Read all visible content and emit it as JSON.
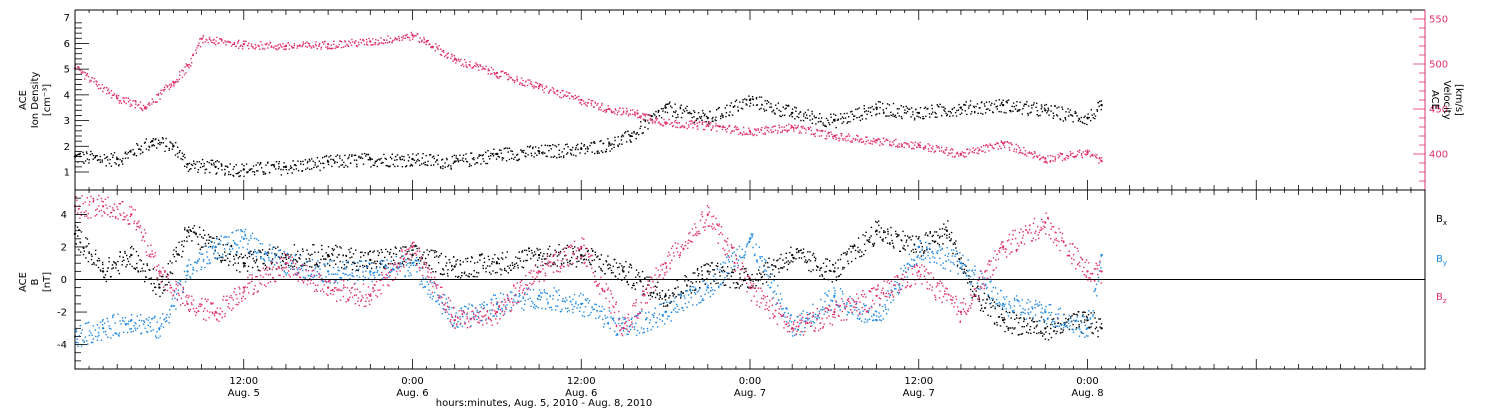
{
  "chart_data": [
    {
      "type": "scatter",
      "panel": "top",
      "left_axis": {
        "label_lines": [
          "ACE",
          "Ion Density",
          "[cm⁻³]"
        ],
        "ylim": [
          0.3,
          7.3
        ],
        "ticks": [
          1,
          2,
          3,
          4,
          5,
          6,
          7
        ],
        "color": "#000000"
      },
      "right_axis": {
        "label_lines": [
          "ACE",
          "Velocity",
          "[km/s]"
        ],
        "ylim": [
          360,
          560
        ],
        "ticks": [
          400,
          450,
          500,
          550
        ],
        "color": "#e0306a"
      },
      "series": [
        {
          "axis": "left",
          "color": "#000000",
          "x": [
            "Aug 5 00:00",
            "Aug 5 03:00",
            "Aug 5 05:30",
            "Aug 5 07:00",
            "Aug 5 08:00",
            "Aug 5 10:00",
            "Aug 5 12:00",
            "Aug 5 15:00",
            "Aug 5 18:00",
            "Aug 5 21:00",
            "Aug 6 00:00",
            "Aug 6 03:00",
            "Aug 6 06:00",
            "Aug 6 09:00",
            "Aug 6 12:00",
            "Aug 6 14:00",
            "Aug 6 15:30",
            "Aug 6 18:00",
            "Aug 6 21:00",
            "Aug 7 00:00",
            "Aug 7 03:00",
            "Aug 7 06:00",
            "Aug 7 09:00",
            "Aug 7 12:00",
            "Aug 7 15:00",
            "Aug 7 18:00",
            "Aug 7 21:00",
            "Aug 8 00:00",
            "Aug 8 01:00"
          ],
          "y": [
            1.6,
            1.5,
            2.2,
            2.0,
            1.3,
            1.2,
            1.1,
            1.2,
            1.4,
            1.5,
            1.5,
            1.4,
            1.7,
            1.8,
            1.9,
            2.1,
            2.4,
            3.5,
            3.1,
            3.8,
            3.3,
            3.0,
            3.5,
            3.3,
            3.5,
            3.6,
            3.4,
            3.1,
            3.6
          ]
        },
        {
          "axis": "right",
          "color": "#e0306a",
          "x": [
            "Aug 5 00:00",
            "Aug 5 03:00",
            "Aug 5 05:00",
            "Aug 5 07:00",
            "Aug 5 08:00",
            "Aug 5 09:00",
            "Aug 5 12:00",
            "Aug 5 15:00",
            "Aug 5 18:00",
            "Aug 5 21:00",
            "Aug 6 00:00",
            "Aug 6 01:00",
            "Aug 6 03:00",
            "Aug 6 06:00",
            "Aug 6 09:00",
            "Aug 6 12:00",
            "Aug 6 14:00",
            "Aug 6 16:00",
            "Aug 6 18:00",
            "Aug 6 21:00",
            "Aug 7 00:00",
            "Aug 7 03:00",
            "Aug 7 06:00",
            "Aug 7 09:00",
            "Aug 7 12:00",
            "Aug 7 15:00",
            "Aug 7 18:00",
            "Aug 7 21:00",
            "Aug 8 00:00",
            "Aug 8 01:00"
          ],
          "y": [
            495,
            462,
            452,
            480,
            498,
            528,
            522,
            520,
            522,
            525,
            532,
            525,
            505,
            490,
            475,
            460,
            450,
            445,
            435,
            432,
            425,
            430,
            420,
            415,
            410,
            400,
            412,
            395,
            402,
            392
          ]
        }
      ]
    },
    {
      "type": "scatter",
      "panel": "bottom",
      "left_axis": {
        "label_lines": [
          "ACE",
          "B",
          "[nT]"
        ],
        "ylim": [
          -5.5,
          5.5
        ],
        "ticks": [
          -4,
          -2,
          0,
          2,
          4
        ]
      },
      "xlabel": "hours:minutes, Aug.  5, 2010 - Aug.  8, 2010",
      "xticks": [
        {
          "x": "Aug 5 12:00",
          "top": "12:00",
          "bottom": "Aug. 5"
        },
        {
          "x": "Aug 6 00:00",
          "top": "0:00",
          "bottom": "Aug. 6"
        },
        {
          "x": "Aug 6 12:00",
          "top": "12:00",
          "bottom": "Aug. 6"
        },
        {
          "x": "Aug 7 00:00",
          "top": "0:00",
          "bottom": "Aug. 7"
        },
        {
          "x": "Aug 7 12:00",
          "top": "12:00",
          "bottom": "Aug. 7"
        },
        {
          "x": "Aug 8 00:00",
          "top": "0:00",
          "bottom": "Aug. 8"
        }
      ],
      "legend": [
        {
          "label": "B",
          "sub": "x",
          "color": "#000000"
        },
        {
          "label": "B",
          "sub": "y",
          "color": "#1e88e5"
        },
        {
          "label": "B",
          "sub": "z",
          "color": "#e0306a"
        }
      ],
      "series": [
        {
          "name": "Bx",
          "color": "#000000",
          "x": [
            "Aug 5 00:00",
            "Aug 5 02:00",
            "Aug 5 04:00",
            "Aug 5 06:00",
            "Aug 5 08:00",
            "Aug 5 10:00",
            "Aug 5 12:00",
            "Aug 5 15:00",
            "Aug 5 18:00",
            "Aug 5 21:00",
            "Aug 6 00:00",
            "Aug 6 03:00",
            "Aug 6 06:00",
            "Aug 6 09:00",
            "Aug 6 12:00",
            "Aug 6 15:00",
            "Aug 6 18:00",
            "Aug 6 21:00",
            "Aug 7 00:00",
            "Aug 7 03:00",
            "Aug 7 06:00",
            "Aug 7 09:00",
            "Aug 7 12:00",
            "Aug 7 14:00",
            "Aug 7 16:00",
            "Aug 7 18:00",
            "Aug 7 21:00",
            "Aug 8 00:00",
            "Aug 8 01:00"
          ],
          "y": [
            2.8,
            0.5,
            1.5,
            -0.5,
            3.0,
            2.0,
            1.0,
            1.5,
            1.5,
            1.2,
            1.5,
            0.8,
            1.0,
            1.5,
            1.5,
            0.5,
            -1.0,
            0.5,
            0.0,
            1.5,
            0.5,
            3.0,
            2.0,
            3.0,
            -1.0,
            -2.5,
            -3.0,
            -2.5,
            -3.0
          ]
        },
        {
          "name": "By",
          "color": "#1e88e5",
          "x": [
            "Aug 5 00:00",
            "Aug 5 02:00",
            "Aug 5 04:00",
            "Aug 5 06:00",
            "Aug 5 08:00",
            "Aug 5 10:00",
            "Aug 5 12:00",
            "Aug 5 15:00",
            "Aug 5 18:00",
            "Aug 5 21:00",
            "Aug 6 00:00",
            "Aug 6 03:00",
            "Aug 6 06:00",
            "Aug 6 09:00",
            "Aug 6 12:00",
            "Aug 6 15:00",
            "Aug 6 18:00",
            "Aug 6 21:00",
            "Aug 7 00:00",
            "Aug 7 03:00",
            "Aug 7 06:00",
            "Aug 7 09:00",
            "Aug 7 12:00",
            "Aug 7 15:00",
            "Aug 7 18:00",
            "Aug 7 21:00",
            "Aug 8 00:00",
            "Aug 8 01:00"
          ],
          "y": [
            -3.5,
            -3.0,
            -2.5,
            -3.0,
            0.5,
            2.0,
            2.5,
            1.0,
            0.5,
            0.5,
            1.0,
            -2.5,
            -1.5,
            -1.0,
            -1.5,
            -3.0,
            -2.0,
            -0.5,
            2.5,
            -3.0,
            -1.0,
            -2.5,
            2.0,
            1.0,
            -1.5,
            -2.0,
            -3.0,
            1.5
          ]
        },
        {
          "name": "Bz",
          "color": "#e0306a",
          "x": [
            "Aug 5 00:00",
            "Aug 5 02:00",
            "Aug 5 04:00",
            "Aug 5 06:00",
            "Aug 5 08:00",
            "Aug 5 10:00",
            "Aug 5 12:00",
            "Aug 5 15:00",
            "Aug 5 18:00",
            "Aug 5 21:00",
            "Aug 6 00:00",
            "Aug 6 03:00",
            "Aug 6 06:00",
            "Aug 6 09:00",
            "Aug 6 12:00",
            "Aug 6 15:00",
            "Aug 6 18:00",
            "Aug 6 21:00",
            "Aug 7 00:00",
            "Aug 7 03:00",
            "Aug 7 06:00",
            "Aug 7 09:00",
            "Aug 7 12:00",
            "Aug 7 15:00",
            "Aug 7 18:00",
            "Aug 7 21:00",
            "Aug 8 00:00",
            "Aug 8 01:00"
          ],
          "y": [
            4.5,
            4.5,
            4.0,
            0.5,
            -1.5,
            -2.0,
            -0.5,
            1.0,
            -0.5,
            -1.0,
            2.0,
            -2.5,
            -2.0,
            0.5,
            2.0,
            -3.0,
            1.0,
            4.0,
            -0.5,
            -3.0,
            -2.0,
            -1.0,
            0.5,
            -2.0,
            2.0,
            3.5,
            0.5,
            0.5
          ]
        }
      ]
    }
  ]
}
